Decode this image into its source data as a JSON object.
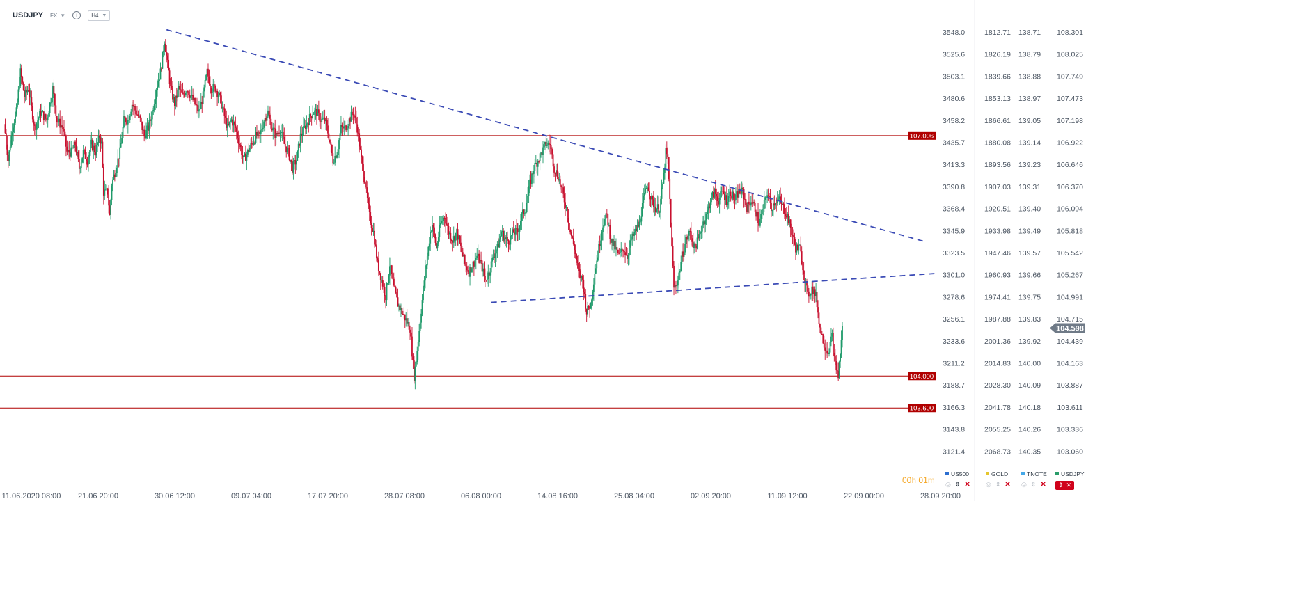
{
  "header": {
    "symbol": "USDJPY",
    "market": "FX",
    "info_icon": "info-icon",
    "timeframe": "H4"
  },
  "timer": {
    "hours": "00",
    "h": "h",
    "minutes": "01",
    "m": "m"
  },
  "price_levels": [
    {
      "value": "107.006",
      "color": "#b00000"
    },
    {
      "value": "104.000",
      "color": "#b00000"
    },
    {
      "value": "103.600",
      "color": "#b00000"
    }
  ],
  "current_price": {
    "value": "104.598",
    "color": "#6f7a87"
  },
  "legend": [
    {
      "name": "US500",
      "color": "#2d6fd0"
    },
    {
      "name": "GOLD",
      "color": "#e5c62d"
    },
    {
      "name": "TNOTE",
      "color": "#45a8e8"
    },
    {
      "name": "USDJPY",
      "color": "#2a9d6a"
    }
  ],
  "colors": {
    "up": "#1f9a6a",
    "down": "#c8102e",
    "trendline": "#3a4ab5",
    "level": "#b00000"
  },
  "chart_data": {
    "type": "candlestick",
    "title": "",
    "xlabel": "",
    "ylabel": "",
    "x_ticks": [
      "11.06.2020  08:00",
      "21.06  20:00",
      "30.06  12:00",
      "09.07  04:00",
      "17.07  20:00",
      "28.07  08:00",
      "06.08  00:00",
      "14.08  16:00",
      "25.08  04:00",
      "02.09  20:00",
      "11.09  12:00",
      "22.09  00:00",
      "28.09  20:00"
    ],
    "ylim": [
      102.95,
      108.42
    ],
    "y_axes": [
      {
        "name": "US500",
        "ticks": [
          "3548.0",
          "3525.6",
          "3503.1",
          "3480.6",
          "3458.2",
          "3435.7",
          "3413.3",
          "3390.8",
          "3368.4",
          "3345.9",
          "3323.5",
          "3301.0",
          "3278.6",
          "3256.1",
          "3233.6",
          "3211.2",
          "3188.7",
          "3166.3",
          "3143.8",
          "3121.4"
        ]
      },
      {
        "name": "GOLD",
        "ticks": [
          "1812.71",
          "1826.19",
          "1839.66",
          "1853.13",
          "1866.61",
          "1880.08",
          "1893.56",
          "1907.03",
          "1920.51",
          "1933.98",
          "1947.46",
          "1960.93",
          "1974.41",
          "1987.88",
          "2001.36",
          "2014.83",
          "2028.30",
          "2041.78",
          "2055.25",
          "2068.73"
        ]
      },
      {
        "name": "TNOTE",
        "ticks": [
          "138.71",
          "138.79",
          "138.88",
          "138.97",
          "139.05",
          "139.14",
          "139.23",
          "139.31",
          "139.40",
          "139.49",
          "139.57",
          "139.66",
          "139.75",
          "139.83",
          "139.92",
          "140.00",
          "140.09",
          "140.18",
          "140.26",
          "140.35"
        ]
      },
      {
        "name": "USDJPY",
        "ticks": [
          "108.301",
          "108.025",
          "107.749",
          "107.473",
          "107.198",
          "106.922",
          "106.646",
          "106.370",
          "106.094",
          "105.818",
          "105.542",
          "105.267",
          "104.991",
          "104.715",
          "104.439",
          "104.163",
          "103.887",
          "103.611",
          "103.336",
          "103.060"
        ]
      }
    ],
    "path_points": [
      [
        0,
        107.15
      ],
      [
        4,
        106.7
      ],
      [
        8,
        107.1
      ],
      [
        12,
        107.3
      ],
      [
        16,
        107.8
      ],
      [
        20,
        107.5
      ],
      [
        24,
        107.6
      ],
      [
        30,
        107.1
      ],
      [
        36,
        107.3
      ],
      [
        42,
        107.2
      ],
      [
        48,
        107.6
      ],
      [
        52,
        107.2
      ],
      [
        58,
        107.1
      ],
      [
        62,
        106.8
      ],
      [
        66,
        106.8
      ],
      [
        70,
        106.9
      ],
      [
        74,
        106.6
      ],
      [
        78,
        106.8
      ],
      [
        82,
        106.7
      ],
      [
        86,
        106.9
      ],
      [
        90,
        106.8
      ],
      [
        94,
        107.0
      ],
      [
        96,
        106.9
      ],
      [
        98,
        106.3
      ],
      [
        100,
        106.3
      ],
      [
        102,
        106.3
      ],
      [
        104,
        106.0
      ],
      [
        106,
        106.4
      ],
      [
        110,
        106.6
      ],
      [
        114,
        106.8
      ],
      [
        118,
        107.2
      ],
      [
        122,
        107.2
      ],
      [
        126,
        107.4
      ],
      [
        130,
        107.3
      ],
      [
        134,
        107.2
      ],
      [
        138,
        107.0
      ],
      [
        142,
        107.1
      ],
      [
        146,
        107.3
      ],
      [
        150,
        107.6
      ],
      [
        154,
        107.8
      ],
      [
        156,
        108.0
      ],
      [
        158,
        108.2
      ],
      [
        160,
        108.0
      ],
      [
        164,
        107.6
      ],
      [
        168,
        107.4
      ],
      [
        172,
        107.6
      ],
      [
        176,
        107.5
      ],
      [
        180,
        107.6
      ],
      [
        184,
        107.5
      ],
      [
        188,
        107.4
      ],
      [
        192,
        107.3
      ],
      [
        196,
        107.5
      ],
      [
        200,
        107.8
      ],
      [
        204,
        107.6
      ],
      [
        208,
        107.6
      ],
      [
        212,
        107.5
      ],
      [
        216,
        107.3
      ],
      [
        220,
        107.1
      ],
      [
        224,
        107.2
      ],
      [
        228,
        107.1
      ],
      [
        232,
        106.9
      ],
      [
        236,
        106.7
      ],
      [
        240,
        106.8
      ],
      [
        244,
        106.9
      ],
      [
        248,
        107.0
      ],
      [
        252,
        107.0
      ],
      [
        256,
        107.2
      ],
      [
        260,
        107.3
      ],
      [
        264,
        107.1
      ],
      [
        268,
        107.0
      ],
      [
        272,
        107.1
      ],
      [
        276,
        106.9
      ],
      [
        280,
        106.8
      ],
      [
        284,
        106.6
      ],
      [
        288,
        106.7
      ],
      [
        292,
        107.0
      ],
      [
        296,
        107.1
      ],
      [
        300,
        107.2
      ],
      [
        304,
        107.3
      ],
      [
        308,
        107.3
      ],
      [
        312,
        107.2
      ],
      [
        316,
        107.2
      ],
      [
        320,
        107.0
      ],
      [
        324,
        106.7
      ],
      [
        328,
        106.8
      ],
      [
        332,
        107.1
      ],
      [
        336,
        107.1
      ],
      [
        340,
        107.2
      ],
      [
        344,
        107.3
      ],
      [
        348,
        107.1
      ],
      [
        352,
        106.7
      ],
      [
        356,
        106.4
      ],
      [
        360,
        106.0
      ],
      [
        364,
        105.8
      ],
      [
        368,
        105.4
      ],
      [
        372,
        105.2
      ],
      [
        376,
        105.0
      ],
      [
        380,
        105.4
      ],
      [
        384,
        105.1
      ],
      [
        388,
        104.9
      ],
      [
        392,
        104.8
      ],
      [
        396,
        104.7
      ],
      [
        400,
        104.6
      ],
      [
        402,
        104.3
      ],
      [
        404,
        104.0
      ],
      [
        406,
        104.2
      ],
      [
        410,
        104.7
      ],
      [
        414,
        105.2
      ],
      [
        418,
        105.6
      ],
      [
        420,
        105.8
      ],
      [
        422,
        105.9
      ],
      [
        426,
        105.6
      ],
      [
        430,
        105.9
      ],
      [
        434,
        106.0
      ],
      [
        438,
        105.8
      ],
      [
        442,
        105.7
      ],
      [
        446,
        105.8
      ],
      [
        450,
        105.6
      ],
      [
        454,
        105.4
      ],
      [
        458,
        105.3
      ],
      [
        462,
        105.4
      ],
      [
        466,
        105.5
      ],
      [
        470,
        105.4
      ],
      [
        474,
        105.2
      ],
      [
        478,
        105.3
      ],
      [
        482,
        105.5
      ],
      [
        486,
        105.6
      ],
      [
        490,
        105.8
      ],
      [
        494,
        105.7
      ],
      [
        498,
        105.7
      ],
      [
        502,
        105.8
      ],
      [
        506,
        105.8
      ],
      [
        510,
        106.0
      ],
      [
        514,
        106.1
      ],
      [
        518,
        106.4
      ],
      [
        522,
        106.6
      ],
      [
        526,
        106.7
      ],
      [
        530,
        106.8
      ],
      [
        534,
        106.9
      ],
      [
        538,
        106.9
      ],
      [
        542,
        106.6
      ],
      [
        546,
        106.5
      ],
      [
        550,
        106.3
      ],
      [
        554,
        106.1
      ],
      [
        558,
        105.8
      ],
      [
        562,
        105.6
      ],
      [
        566,
        105.3
      ],
      [
        570,
        105.2
      ],
      [
        574,
        104.8
      ],
      [
        578,
        104.9
      ],
      [
        582,
        105.3
      ],
      [
        586,
        105.6
      ],
      [
        590,
        105.9
      ],
      [
        594,
        106.0
      ],
      [
        598,
        105.7
      ],
      [
        602,
        105.6
      ],
      [
        606,
        105.5
      ],
      [
        610,
        105.6
      ],
      [
        614,
        105.5
      ],
      [
        618,
        105.7
      ],
      [
        622,
        105.8
      ],
      [
        626,
        105.9
      ],
      [
        630,
        106.2
      ],
      [
        634,
        106.4
      ],
      [
        638,
        106.2
      ],
      [
        642,
        106.1
      ],
      [
        646,
        106.1
      ],
      [
        650,
        106.5
      ],
      [
        652,
        106.8
      ],
      [
        654,
        106.7
      ],
      [
        656,
        106.2
      ],
      [
        658,
        105.6
      ],
      [
        660,
        105.1
      ],
      [
        664,
        105.2
      ],
      [
        668,
        105.5
      ],
      [
        672,
        105.7
      ],
      [
        676,
        105.8
      ],
      [
        680,
        105.6
      ],
      [
        684,
        105.7
      ],
      [
        688,
        105.9
      ],
      [
        692,
        106.0
      ],
      [
        696,
        106.2
      ],
      [
        700,
        106.3
      ],
      [
        704,
        106.2
      ],
      [
        708,
        106.3
      ],
      [
        712,
        106.2
      ],
      [
        716,
        106.3
      ],
      [
        720,
        106.2
      ],
      [
        724,
        106.3
      ],
      [
        728,
        106.3
      ],
      [
        732,
        106.1
      ],
      [
        736,
        106.2
      ],
      [
        740,
        106.1
      ],
      [
        744,
        105.9
      ],
      [
        748,
        106.1
      ],
      [
        752,
        106.3
      ],
      [
        756,
        106.1
      ],
      [
        760,
        106.2
      ],
      [
        764,
        106.2
      ],
      [
        768,
        106.1
      ],
      [
        772,
        106.0
      ],
      [
        776,
        105.8
      ],
      [
        780,
        105.6
      ],
      [
        784,
        105.6
      ],
      [
        788,
        105.3
      ],
      [
        792,
        105.0
      ],
      [
        796,
        105.1
      ],
      [
        800,
        105.0
      ],
      [
        804,
        104.6
      ],
      [
        808,
        104.4
      ],
      [
        812,
        104.3
      ],
      [
        816,
        104.5
      ],
      [
        818,
        104.2
      ],
      [
        820,
        104.1
      ],
      [
        822,
        104.0
      ],
      [
        824,
        104.3
      ],
      [
        826,
        104.6
      ]
    ],
    "trendline_upper": {
      "from": [
        160,
        108.33
      ],
      "to": [
        930,
        105.6
      ],
      "style": "dashed"
    },
    "trendline_lower": {
      "from": [
        480,
        104.92
      ],
      "to": [
        940,
        105.3
      ],
      "style": "dashed"
    }
  }
}
